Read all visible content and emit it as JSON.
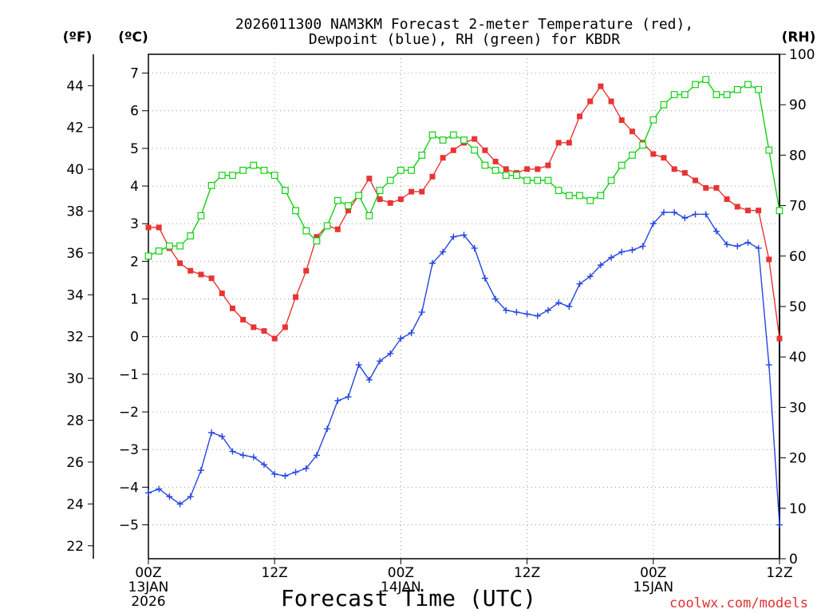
{
  "chart_data": {
    "type": "line",
    "title": [
      "2026011300 NAM3KM Forecast 2-meter Temperature (red),",
      "Dewpoint (blue), RH (green) for KBDR"
    ],
    "xlabel": "Forecast Time (UTC)",
    "credit": "coolwx.com/models",
    "units": {
      "left_outer": "(ºF)",
      "left_inner": "(ºC)",
      "right": "(RH)"
    },
    "x_range_hours": [
      0,
      60
    ],
    "x_ticks": [
      {
        "hour": 0,
        "lines": [
          "00Z",
          "13JAN",
          "2026"
        ]
      },
      {
        "hour": 12,
        "lines": [
          "12Z"
        ]
      },
      {
        "hour": 24,
        "lines": [
          "00Z",
          "14JAN"
        ]
      },
      {
        "hour": 36,
        "lines": [
          "12Z"
        ]
      },
      {
        "hour": 48,
        "lines": [
          "00Z",
          "15JAN"
        ]
      },
      {
        "hour": 60,
        "lines": [
          "12Z"
        ]
      }
    ],
    "y_celsius": {
      "range": [
        -5.9,
        7.5
      ],
      "ticks": [
        "-5",
        "-4",
        "-3",
        "-2",
        "-1",
        "0",
        "1",
        "2",
        "3",
        "4",
        "5",
        "6",
        "7"
      ]
    },
    "y_fahrenheit": {
      "ticks": [
        "22",
        "24",
        "26",
        "28",
        "30",
        "32",
        "34",
        "36",
        "38",
        "40",
        "42",
        "44"
      ]
    },
    "y_rh": {
      "range": [
        0,
        100
      ],
      "ticks": [
        "0",
        "10",
        "20",
        "30",
        "40",
        "50",
        "60",
        "70",
        "80",
        "90",
        "100"
      ]
    },
    "series": [
      {
        "name": "2-meter Temperature",
        "units": "C",
        "color": "#e83434",
        "marker": "filled-square",
        "hours": [
          0,
          1,
          2,
          3,
          4,
          5,
          6,
          7,
          8,
          9,
          10,
          11,
          12,
          13,
          14,
          15,
          16,
          17,
          18,
          19,
          20,
          21,
          22,
          23,
          24,
          25,
          26,
          27,
          28,
          29,
          30,
          31,
          32,
          33,
          34,
          35,
          36,
          37,
          38,
          39,
          40,
          41,
          42,
          43,
          44,
          45,
          46,
          47,
          48,
          49,
          50,
          51,
          52,
          53,
          54,
          55,
          56,
          57,
          58,
          59,
          60
        ],
        "values": [
          2.9,
          2.9,
          2.35,
          1.95,
          1.75,
          1.65,
          1.55,
          1.15,
          0.75,
          0.45,
          0.25,
          0.15,
          -0.05,
          0.25,
          1.05,
          1.75,
          2.65,
          2.95,
          2.85,
          3.35,
          3.75,
          4.2,
          3.65,
          3.55,
          3.65,
          3.85,
          3.85,
          4.25,
          4.75,
          4.95,
          5.15,
          5.25,
          4.95,
          4.65,
          4.45,
          4.35,
          4.45,
          4.45,
          4.55,
          5.15,
          5.15,
          5.85,
          6.25,
          6.65,
          6.25,
          5.75,
          5.45,
          5.15,
          4.85,
          4.75,
          4.45,
          4.35,
          4.15,
          3.95,
          3.95,
          3.65,
          3.45,
          3.35,
          3.35,
          2.05,
          -0.05
        ]
      },
      {
        "name": "Dewpoint",
        "units": "C",
        "color": "#2545e0",
        "marker": "plus",
        "hours": [
          0,
          1,
          2,
          3,
          4,
          5,
          6,
          7,
          8,
          9,
          10,
          11,
          12,
          13,
          14,
          15,
          16,
          17,
          18,
          19,
          20,
          21,
          22,
          23,
          24,
          25,
          26,
          27,
          28,
          29,
          30,
          31,
          32,
          33,
          34,
          35,
          36,
          37,
          38,
          39,
          40,
          41,
          42,
          43,
          44,
          45,
          46,
          47,
          48,
          49,
          50,
          51,
          52,
          53,
          54,
          55,
          56,
          57,
          58,
          59,
          60
        ],
        "values": [
          -4.15,
          -4.05,
          -4.25,
          -4.45,
          -4.25,
          -3.55,
          -2.55,
          -2.65,
          -3.05,
          -3.15,
          -3.2,
          -3.4,
          -3.65,
          -3.7,
          -3.6,
          -3.5,
          -3.15,
          -2.45,
          -1.7,
          -1.6,
          -0.75,
          -1.15,
          -0.65,
          -0.45,
          -0.05,
          0.1,
          0.65,
          1.95,
          2.25,
          2.65,
          2.7,
          2.35,
          1.55,
          1.0,
          0.7,
          0.65,
          0.6,
          0.55,
          0.7,
          0.9,
          0.8,
          1.4,
          1.6,
          1.9,
          2.1,
          2.25,
          2.3,
          2.4,
          3.0,
          3.3,
          3.3,
          3.15,
          3.25,
          3.25,
          2.8,
          2.45,
          2.4,
          2.5,
          2.35,
          -0.75,
          -5.0
        ]
      },
      {
        "name": "RH",
        "units": "%",
        "color": "#12d012",
        "marker": "open-square",
        "hours": [
          0,
          1,
          2,
          3,
          4,
          5,
          6,
          7,
          8,
          9,
          10,
          11,
          12,
          13,
          14,
          15,
          16,
          17,
          18,
          19,
          20,
          21,
          22,
          23,
          24,
          25,
          26,
          27,
          28,
          29,
          30,
          31,
          32,
          33,
          34,
          35,
          36,
          37,
          38,
          39,
          40,
          41,
          42,
          43,
          44,
          45,
          46,
          47,
          48,
          49,
          50,
          51,
          52,
          53,
          54,
          55,
          56,
          57,
          58,
          59,
          60
        ],
        "values": [
          60,
          61,
          62,
          62,
          64,
          68,
          74,
          76,
          76,
          77,
          78,
          77,
          76,
          73,
          69,
          65,
          63,
          66,
          71,
          70,
          72,
          68,
          73,
          75,
          77,
          77,
          80,
          84,
          83,
          84,
          83,
          81,
          78,
          77,
          76,
          76,
          75,
          75,
          75,
          73,
          72,
          72,
          71,
          72,
          75,
          78,
          80,
          82,
          87,
          90,
          92,
          92,
          94,
          95,
          92,
          92,
          93,
          94,
          93,
          81,
          69
        ]
      }
    ]
  }
}
